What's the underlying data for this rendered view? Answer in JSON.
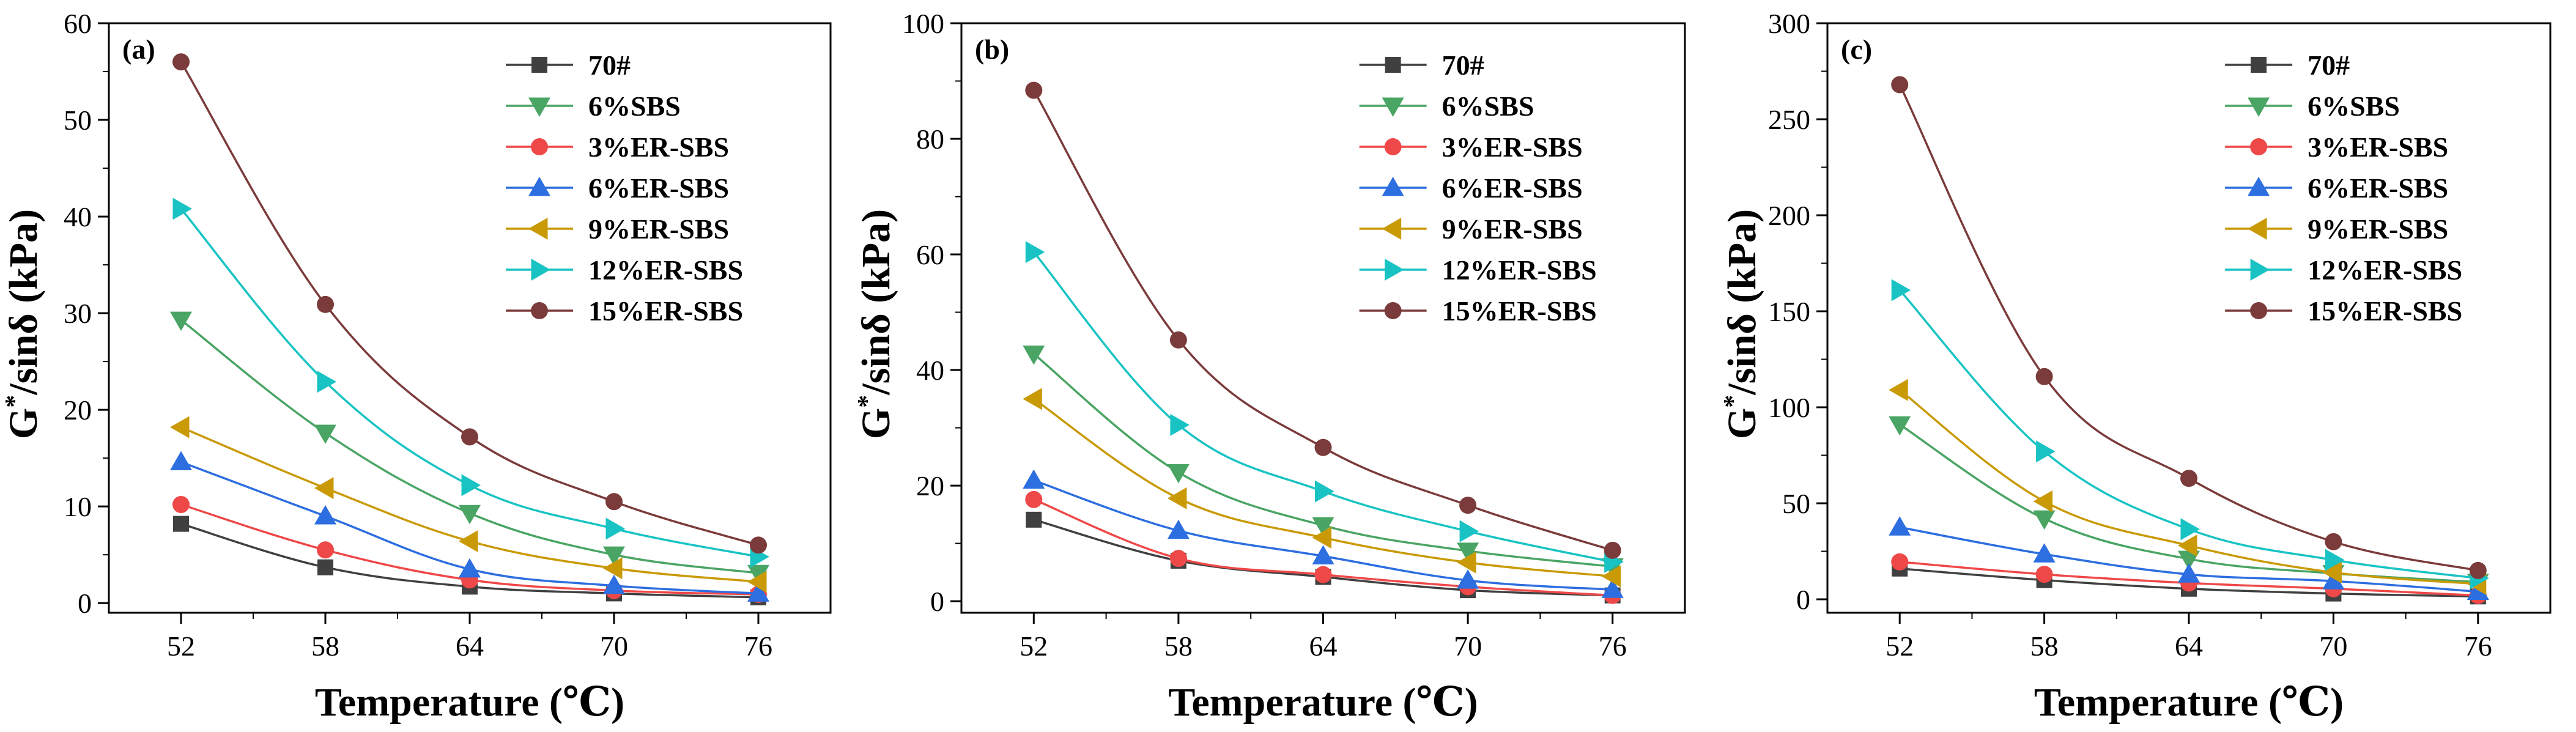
{
  "chart_data": [
    {
      "type": "line",
      "panel_label": "(a)",
      "xlabel": "Temperature (℃)",
      "ylabel_main": "G",
      "ylabel_sup": "*",
      "ylabel_rest": "/sinδ (kPa)",
      "categories": [
        "52",
        "58",
        "64",
        "70",
        "76"
      ],
      "x": [
        52,
        58,
        64,
        70,
        76
      ],
      "xlim": [
        49,
        79
      ],
      "ylim": [
        -1,
        60
      ],
      "yticks": [
        0,
        10,
        20,
        30,
        40,
        50,
        60
      ],
      "legend_position": "top-right",
      "series": [
        {
          "name": "70#",
          "color": "#404040",
          "marker": "square",
          "values": [
            8.2,
            3.7,
            1.7,
            1.0,
            0.6
          ]
        },
        {
          "name": "6%SBS",
          "color": "#4aa564",
          "marker": "triangle-down",
          "values": [
            29.3,
            17.6,
            9.3,
            5.0,
            3.1
          ]
        },
        {
          "name": "3%ER-SBS",
          "color": "#ef4848",
          "marker": "circle",
          "values": [
            10.2,
            5.5,
            2.4,
            1.3,
            0.9
          ]
        },
        {
          "name": "6%ER-SBS",
          "color": "#2d6ee0",
          "marker": "triangle-up",
          "values": [
            14.6,
            9.0,
            3.5,
            1.8,
            1.0
          ]
        },
        {
          "name": "9%ER-SBS",
          "color": "#c99a06",
          "marker": "triangle-left",
          "values": [
            18.2,
            11.9,
            6.4,
            3.6,
            2.2
          ]
        },
        {
          "name": "12%ER-SBS",
          "color": "#19c3c3",
          "marker": "triangle-right",
          "values": [
            40.8,
            22.9,
            12.2,
            7.7,
            4.8
          ]
        },
        {
          "name": "15%ER-SBS",
          "color": "#7b3b3b",
          "marker": "circle",
          "values": [
            56.0,
            30.9,
            17.2,
            10.5,
            6.0
          ]
        }
      ]
    },
    {
      "type": "line",
      "panel_label": "(b)",
      "xlabel": "Temperature (℃)",
      "ylabel_main": "G",
      "ylabel_sup": "*",
      "ylabel_rest": "/sinδ (kPa)",
      "categories": [
        "52",
        "58",
        "64",
        "70",
        "76"
      ],
      "x": [
        52,
        58,
        64,
        70,
        76
      ],
      "xlim": [
        49,
        79
      ],
      "ylim": [
        -2,
        100
      ],
      "yticks": [
        0,
        20,
        40,
        60,
        80,
        100
      ],
      "legend_position": "top-right",
      "series": [
        {
          "name": "70#",
          "color": "#404040",
          "marker": "square",
          "values": [
            14.1,
            7.0,
            4.2,
            1.9,
            1.0
          ]
        },
        {
          "name": "6%SBS",
          "color": "#4aa564",
          "marker": "triangle-down",
          "values": [
            42.8,
            22.3,
            13.1,
            8.7,
            6.0
          ]
        },
        {
          "name": "3%ER-SBS",
          "color": "#ef4848",
          "marker": "circle",
          "values": [
            17.6,
            7.4,
            4.6,
            2.5,
            1.0
          ]
        },
        {
          "name": "6%ER-SBS",
          "color": "#2d6ee0",
          "marker": "triangle-up",
          "values": [
            20.9,
            12.2,
            7.8,
            3.6,
            2.0
          ]
        },
        {
          "name": "9%ER-SBS",
          "color": "#c99a06",
          "marker": "triangle-left",
          "values": [
            35.0,
            17.8,
            11.0,
            6.7,
            4.3
          ]
        },
        {
          "name": "12%ER-SBS",
          "color": "#19c3c3",
          "marker": "triangle-right",
          "values": [
            60.4,
            30.5,
            19.0,
            12.1,
            6.8
          ]
        },
        {
          "name": "15%ER-SBS",
          "color": "#7b3b3b",
          "marker": "circle",
          "values": [
            88.4,
            45.2,
            26.6,
            16.6,
            8.8
          ]
        }
      ]
    },
    {
      "type": "line",
      "panel_label": "(c)",
      "xlabel": "Temperature (℃)",
      "ylabel_main": "G",
      "ylabel_sup": "*",
      "ylabel_rest": "/sinδ (kPa)",
      "categories": [
        "52",
        "58",
        "64",
        "70",
        "76"
      ],
      "x": [
        52,
        58,
        64,
        70,
        76
      ],
      "xlim": [
        49,
        79
      ],
      "ylim": [
        -7,
        300
      ],
      "yticks": [
        0,
        50,
        100,
        150,
        200,
        250,
        300
      ],
      "legend_position": "top-right",
      "series": [
        {
          "name": "70#",
          "color": "#404040",
          "marker": "square",
          "values": [
            16.0,
            10.0,
            5.5,
            3.0,
            1.5
          ]
        },
        {
          "name": "6%SBS",
          "color": "#4aa564",
          "marker": "triangle-down",
          "values": [
            91.0,
            42.0,
            21.0,
            13.5,
            9.0
          ]
        },
        {
          "name": "3%ER-SBS",
          "color": "#ef4848",
          "marker": "circle",
          "values": [
            19.5,
            13.0,
            8.5,
            5.5,
            2.0
          ]
        },
        {
          "name": "6%ER-SBS",
          "color": "#2d6ee0",
          "marker": "triangle-up",
          "values": [
            37.5,
            23.5,
            13.0,
            9.5,
            4.0
          ]
        },
        {
          "name": "9%ER-SBS",
          "color": "#c99a06",
          "marker": "triangle-left",
          "values": [
            109.0,
            51.0,
            28.0,
            14.0,
            8.0
          ]
        },
        {
          "name": "12%ER-SBS",
          "color": "#19c3c3",
          "marker": "triangle-right",
          "values": [
            161.0,
            77.0,
            36.5,
            20.5,
            11.0
          ]
        },
        {
          "name": "15%ER-SBS",
          "color": "#7b3b3b",
          "marker": "circle",
          "values": [
            268.0,
            116.0,
            63.0,
            30.0,
            15.0
          ]
        }
      ]
    }
  ]
}
